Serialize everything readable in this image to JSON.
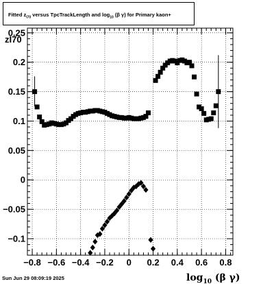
{
  "title": {
    "part1": "Fitted  z",
    "sub1": "I70",
    "part2": "  versus TpcTrackLength and log",
    "sub2": "10",
    "part3": " (β  γ) for Primary kaon+"
  },
  "footer": "Sun Jun 29 08:09:19 2025",
  "chart_data": {
    "type": "scatter",
    "ylabel": "zI70",
    "xlabel": {
      "main": "log",
      "sub": "10",
      "rest": " (β γ)"
    },
    "xlim": [
      -0.84,
      0.86
    ],
    "ylim": [
      -0.128,
      0.258
    ],
    "xticks": [
      -0.8,
      -0.6,
      -0.4,
      -0.2,
      0,
      0.2,
      0.4,
      0.6,
      0.8
    ],
    "xtick_labels": [
      "−0.8",
      "−0.6",
      "−0.4",
      "−0.2",
      "0",
      "0.2",
      "0.4",
      "0.6",
      "0.8"
    ],
    "yticks": [
      -0.1,
      -0.05,
      0,
      0.05,
      0.1,
      0.15,
      0.2,
      0.25
    ],
    "ytick_labels": [
      "−0.1",
      "−0.05",
      "0",
      "0.05",
      "0.1",
      "0.15",
      "0.2",
      "0.25"
    ],
    "grid": true,
    "series": [
      {
        "marker": "square",
        "points": [
          [
            -0.78,
            0.15
          ],
          [
            -0.76,
            0.124
          ],
          [
            -0.74,
            0.107
          ],
          [
            -0.72,
            0.099
          ],
          [
            -0.7,
            0.093
          ],
          [
            -0.68,
            0.094
          ],
          [
            -0.66,
            0.095
          ],
          [
            -0.64,
            0.097
          ],
          [
            -0.62,
            0.096
          ],
          [
            -0.6,
            0.095
          ],
          [
            -0.58,
            0.094
          ],
          [
            -0.56,
            0.094
          ],
          [
            -0.54,
            0.095
          ],
          [
            -0.52,
            0.097
          ],
          [
            -0.5,
            0.101
          ],
          [
            -0.48,
            0.104
          ],
          [
            -0.46,
            0.108
          ],
          [
            -0.44,
            0.111
          ],
          [
            -0.42,
            0.113
          ],
          [
            -0.4,
            0.114
          ],
          [
            -0.38,
            0.115
          ],
          [
            -0.36,
            0.115
          ],
          [
            -0.34,
            0.116
          ],
          [
            -0.32,
            0.117
          ],
          [
            -0.3,
            0.117
          ],
          [
            -0.28,
            0.118
          ],
          [
            -0.26,
            0.118
          ],
          [
            -0.24,
            0.117
          ],
          [
            -0.22,
            0.116
          ],
          [
            -0.2,
            0.115
          ],
          [
            -0.18,
            0.113
          ],
          [
            -0.16,
            0.111
          ],
          [
            -0.14,
            0.109
          ],
          [
            -0.12,
            0.108
          ],
          [
            -0.1,
            0.107
          ],
          [
            -0.08,
            0.106
          ],
          [
            -0.06,
            0.106
          ],
          [
            -0.04,
            0.105
          ],
          [
            -0.02,
            0.105
          ],
          [
            0.0,
            0.106
          ],
          [
            0.02,
            0.105
          ],
          [
            0.04,
            0.104
          ],
          [
            0.06,
            0.104
          ],
          [
            0.08,
            0.104
          ],
          [
            0.1,
            0.105
          ],
          [
            0.12,
            0.106
          ],
          [
            0.14,
            0.108
          ],
          [
            0.16,
            0.114
          ],
          [
            0.22,
            0.169
          ],
          [
            0.24,
            0.176
          ],
          [
            0.26,
            0.183
          ],
          [
            0.28,
            0.19
          ],
          [
            0.3,
            0.195
          ],
          [
            0.32,
            0.199
          ],
          [
            0.34,
            0.202
          ],
          [
            0.36,
            0.203
          ],
          [
            0.38,
            0.202
          ],
          [
            0.4,
            0.199
          ],
          [
            0.42,
            0.203
          ],
          [
            0.44,
            0.204
          ],
          [
            0.46,
            0.202
          ],
          [
            0.48,
            0.199
          ],
          [
            0.5,
            0.2
          ],
          [
            0.52,
            0.194
          ],
          [
            0.54,
            0.175
          ],
          [
            0.56,
            0.146
          ],
          [
            0.58,
            0.124
          ],
          [
            0.6,
            0.121
          ],
          [
            0.62,
            0.113
          ],
          [
            0.64,
            0.102
          ],
          [
            0.66,
            0.103
          ],
          [
            0.68,
            0.104
          ],
          [
            0.7,
            0.114
          ],
          [
            0.72,
            0.126
          ],
          [
            0.74,
            0.15
          ]
        ]
      },
      {
        "marker": "diamond",
        "points": [
          [
            -0.32,
            -0.124
          ],
          [
            -0.3,
            -0.115
          ],
          [
            -0.28,
            -0.105
          ],
          [
            -0.26,
            -0.094
          ],
          [
            -0.24,
            -0.092
          ],
          [
            -0.22,
            -0.083
          ],
          [
            -0.2,
            -0.077
          ],
          [
            -0.18,
            -0.071
          ],
          [
            -0.16,
            -0.065
          ],
          [
            -0.14,
            -0.061
          ],
          [
            -0.12,
            -0.057
          ],
          [
            -0.1,
            -0.052
          ],
          [
            -0.08,
            -0.046
          ],
          [
            -0.06,
            -0.041
          ],
          [
            -0.04,
            -0.036
          ],
          [
            -0.02,
            -0.03
          ],
          [
            0.0,
            -0.024
          ],
          [
            0.02,
            -0.018
          ],
          [
            0.04,
            -0.013
          ],
          [
            0.06,
            -0.011
          ],
          [
            0.08,
            -0.007
          ],
          [
            0.1,
            -0.005
          ],
          [
            0.12,
            -0.011
          ],
          [
            0.14,
            -0.017
          ],
          [
            0.18,
            -0.102
          ],
          [
            0.2,
            -0.117
          ]
        ]
      }
    ],
    "error_bars": [
      {
        "x": -0.78,
        "low": 0.125,
        "high": 0.176
      },
      {
        "x": 0.74,
        "low": 0.088,
        "high": 0.212
      }
    ]
  }
}
